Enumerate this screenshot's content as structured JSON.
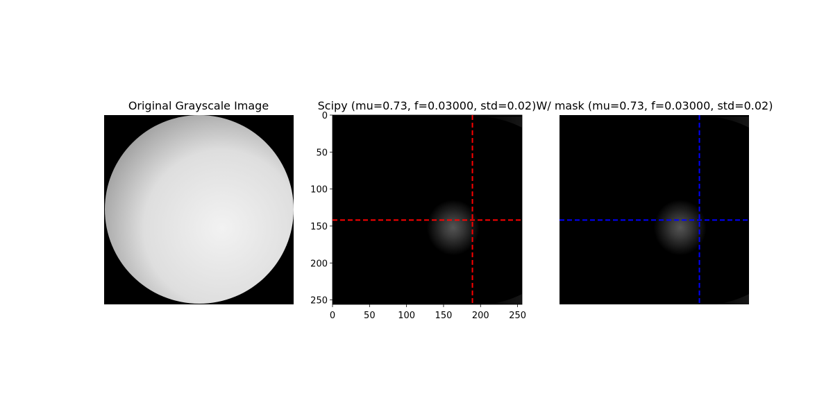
{
  "chart_data": [
    {
      "type": "image",
      "title": "Original Grayscale Image",
      "axes_visible": false,
      "content": "grayscale sphere on black background",
      "colors": {
        "background": "#000000",
        "sphere_highlight": "#f2f2f2",
        "sphere_shadow": "#8c8c8c"
      }
    },
    {
      "type": "image",
      "title": "Scipy (mu=0.73, f=0.03000, std=0.02)",
      "axes_visible": true,
      "xlim": [
        0,
        256
      ],
      "ylim": [
        256,
        0
      ],
      "xticks": [
        "0",
        "50",
        "100",
        "150",
        "200",
        "250"
      ],
      "yticks": [
        "0",
        "50",
        "100",
        "150",
        "200",
        "250"
      ],
      "xtick_values": [
        0,
        50,
        100,
        150,
        200,
        250
      ],
      "ytick_values": [
        0,
        50,
        100,
        150,
        200,
        250
      ],
      "crosshair": {
        "x": 189,
        "y": 142,
        "color": "#ff0000",
        "style": "dashed"
      },
      "blob_center": {
        "x": 163,
        "y": 152
      }
    },
    {
      "type": "image",
      "title": "W/ mask (mu=0.73, f=0.03000, std=0.02)",
      "axes_visible": false,
      "xlim": [
        0,
        256
      ],
      "ylim": [
        256,
        0
      ],
      "crosshair": {
        "x": 189,
        "y": 142,
        "color": "#0000ff",
        "style": "dashed"
      },
      "blob_center": {
        "x": 163,
        "y": 152
      }
    }
  ]
}
